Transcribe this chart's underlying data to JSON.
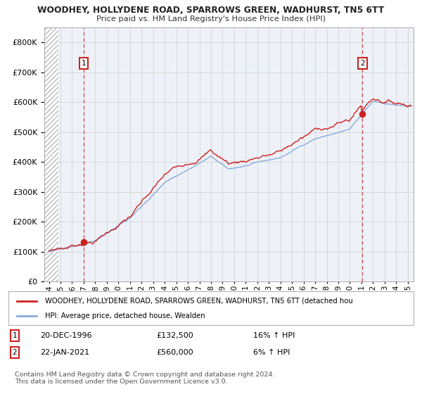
{
  "title1": "WOODHEY, HOLLYDENE ROAD, SPARROWS GREEN, WADHURST, TN5 6TT",
  "title2": "Price paid vs. HM Land Registry's House Price Index (HPI)",
  "sale1_date": "20-DEC-1996",
  "sale1_year": 1997.0,
  "sale1_price": 132500,
  "sale1_hpi_pct": "16%",
  "sale2_date": "22-JAN-2021",
  "sale2_year": 2021.07,
  "sale2_price": 560000,
  "sale2_hpi_pct": "6%",
  "legend1": "WOODHEY, HOLLYDENE ROAD, SPARROWS GREEN, WADHURST, TN5 6TT (detached hou",
  "legend2": "HPI: Average price, detached house, Wealden",
  "footer": "Contains HM Land Registry data © Crown copyright and database right 2024.\nThis data is licensed under the Open Government Licence v3.0.",
  "red_color": "#cc2222",
  "blue_color": "#88aadd",
  "hatch_color": "#bbbbbb",
  "grid_color": "#cccccc",
  "bg_color": "#eef2f8",
  "ylim_max": 850000,
  "xstart_year": 1993.6,
  "xend_year": 2025.5
}
